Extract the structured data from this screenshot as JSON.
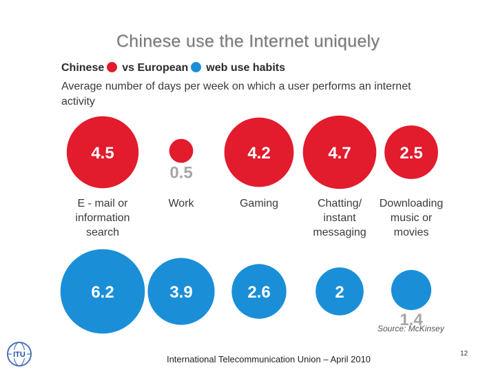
{
  "slide": {
    "title": "Chinese use the Internet uniquely",
    "footer": "International Telecommunication Union – April 2010",
    "page_number": "12",
    "logo_text": "ITU"
  },
  "chart_data": {
    "type": "bubble",
    "legend": {
      "chinese_label": "Chinese",
      "vs_label": "vs",
      "european_label": "European",
      "suffix_label": "web use habits"
    },
    "subtitle": "Average number of days per week on which a user performs an internet activity",
    "source": "Source: McKinsey",
    "colors": {
      "chinese": "#e21b2d",
      "european": "#1a8fd8",
      "outside_value": "#a6a6a6"
    },
    "categories": [
      "E - mail or information search",
      "Work",
      "Gaming",
      "Chatting/ instant messaging",
      "Downloading music or movies"
    ],
    "category_lines": [
      [
        "E - mail or",
        "information",
        "search"
      ],
      [
        "Work"
      ],
      [
        "Gaming"
      ],
      [
        "Chatting/",
        "instant",
        "messaging"
      ],
      [
        "Downloading",
        "music or",
        "movies"
      ]
    ],
    "series": [
      {
        "name": "Chinese",
        "values": [
          4.5,
          0.5,
          4.2,
          4.7,
          2.5
        ],
        "labels": [
          "4.5",
          "0.5",
          "4.2",
          "4.7",
          "2.5"
        ]
      },
      {
        "name": "European",
        "values": [
          6.2,
          3.9,
          2.6,
          2,
          1.4
        ],
        "labels": [
          "6.2",
          "3.9",
          "2.6",
          "2",
          "1.4"
        ]
      }
    ]
  }
}
